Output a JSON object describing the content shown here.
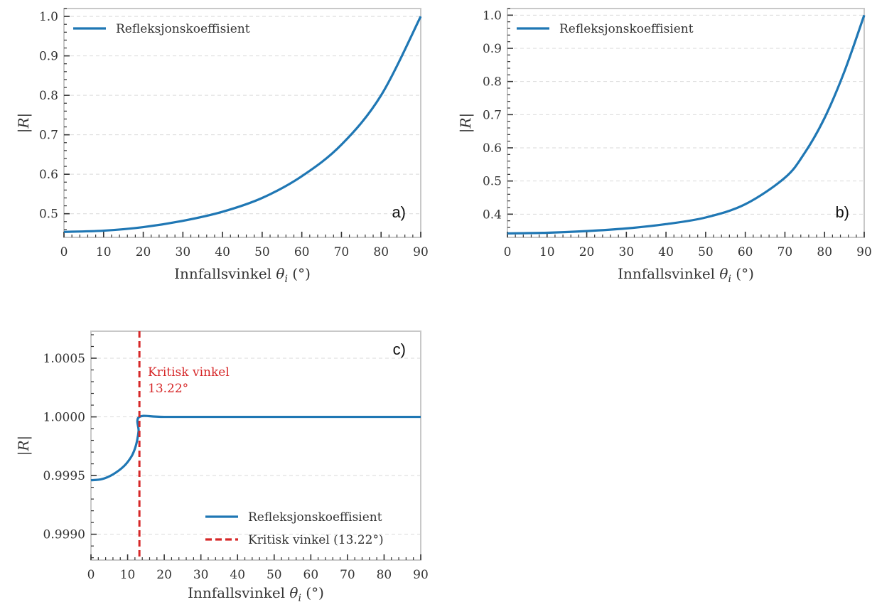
{
  "chart_data": [
    {
      "type": "line",
      "panel_label": "a)",
      "xlabel": "Innfallsvinkel θ_i (°)",
      "ylabel": "|R|",
      "xlim": [
        0,
        90
      ],
      "ylim": [
        0.44,
        1.02
      ],
      "xticks": [
        0,
        10,
        20,
        30,
        40,
        50,
        60,
        70,
        80,
        90
      ],
      "xtick_labels": [
        "0",
        "10",
        "20",
        "30",
        "40",
        "50",
        "60",
        "70",
        "80",
        "90"
      ],
      "yticks": [
        0.5,
        0.6,
        0.7,
        0.8,
        0.9,
        1.0
      ],
      "ytick_labels": [
        "0.5",
        "0.6",
        "0.7",
        "0.8",
        "0.9",
        "1.0"
      ],
      "grid": "horizontal dashed",
      "legend": "top-left",
      "series": [
        {
          "name": "Refleksjonskoeffisient",
          "color": "#1f77b4",
          "style": "solid",
          "x": [
            0,
            10,
            20,
            30,
            40,
            50,
            60,
            70,
            80,
            90
          ],
          "y": [
            0.454,
            0.457,
            0.466,
            0.482,
            0.505,
            0.54,
            0.595,
            0.675,
            0.8,
            1.0
          ]
        }
      ]
    },
    {
      "type": "line",
      "panel_label": "b)",
      "xlabel": "Innfallsvinkel θ_i (°)",
      "ylabel": "|R|",
      "xlim": [
        0,
        90
      ],
      "ylim": [
        0.33,
        1.02
      ],
      "xticks": [
        0,
        10,
        20,
        30,
        40,
        50,
        60,
        70,
        80,
        90
      ],
      "xtick_labels": [
        "0",
        "10",
        "20",
        "30",
        "40",
        "50",
        "60",
        "70",
        "80",
        "90"
      ],
      "yticks": [
        0.4,
        0.5,
        0.6,
        0.7,
        0.8,
        0.9,
        1.0
      ],
      "ytick_labels": [
        "0.4",
        "0.5",
        "0.6",
        "0.7",
        "0.8",
        "0.9",
        "1.0"
      ],
      "grid": "horizontal dashed",
      "legend": "top-left",
      "series": [
        {
          "name": "Refleksjonskoeffisient",
          "color": "#1f77b4",
          "style": "solid",
          "x": [
            0,
            10,
            20,
            30,
            40,
            50,
            60,
            70,
            75,
            80,
            85,
            90
          ],
          "y": [
            0.342,
            0.344,
            0.349,
            0.357,
            0.37,
            0.39,
            0.43,
            0.51,
            0.585,
            0.69,
            0.83,
            1.0
          ]
        }
      ]
    },
    {
      "type": "line",
      "panel_label": "c)",
      "xlabel": "Innfallsvinkel θ_i (°)",
      "ylabel": "|R|",
      "xlim": [
        0,
        90
      ],
      "ylim": [
        0.99878,
        1.00073
      ],
      "xticks": [
        0,
        10,
        20,
        30,
        40,
        50,
        60,
        70,
        80,
        90
      ],
      "xtick_labels": [
        "0",
        "10",
        "20",
        "30",
        "40",
        "50",
        "60",
        "70",
        "80",
        "90"
      ],
      "yticks": [
        0.999,
        0.9995,
        1.0,
        1.0005
      ],
      "ytick_labels": [
        "0.9990",
        "0.9995",
        "1.0000",
        "1.0005"
      ],
      "grid": "horizontal dashed",
      "legend": "bottom-right",
      "annotation": {
        "lines": [
          "Kritisk vinkel",
          "13.22°"
        ],
        "color": "#d62728"
      },
      "series": [
        {
          "name": "Refleksjonskoeffisient",
          "color": "#1f77b4",
          "style": "solid",
          "x": [
            0,
            3,
            6,
            9,
            11,
            12,
            12.6,
            13,
            13.22,
            20,
            40,
            60,
            80,
            90
          ],
          "y": [
            0.99946,
            0.99947,
            0.99951,
            0.99958,
            0.99966,
            0.99973,
            0.9998,
            0.99988,
            1.0,
            1.0,
            1.0,
            1.0,
            1.0,
            1.0
          ]
        },
        {
          "name": "Kritisk vinkel (13.22°)",
          "color": "#d62728",
          "style": "dashed",
          "vline_x": 13.22
        }
      ]
    }
  ]
}
